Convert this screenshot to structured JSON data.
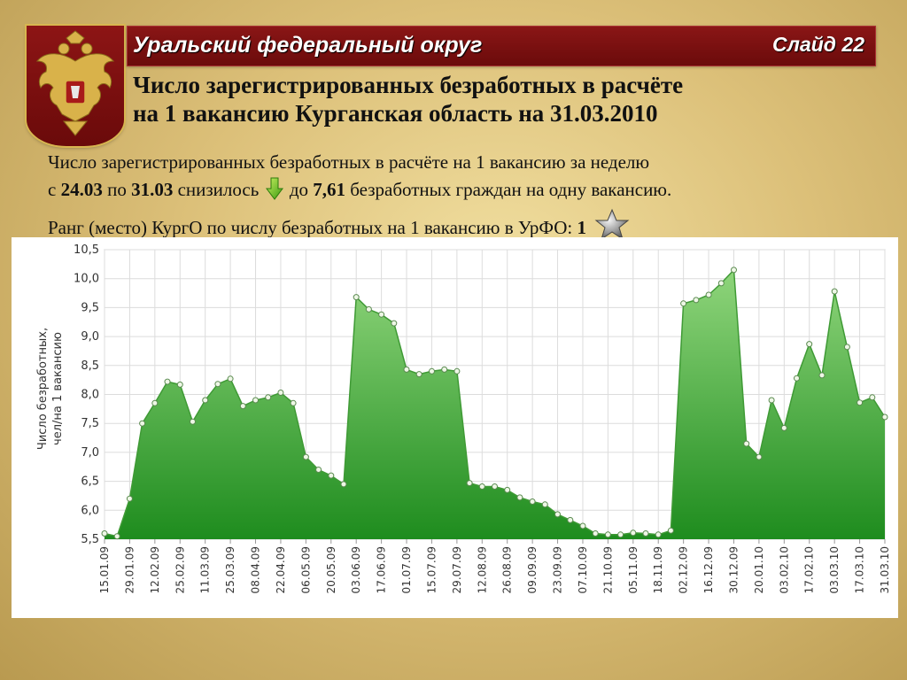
{
  "header": {
    "region": "Уральский федеральный округ",
    "slide": "Слайд 22"
  },
  "title": {
    "line1": "Число зарегистрированных безработных в расчёте",
    "line2": "на 1 вакансию Курганская область на 31.03.2010"
  },
  "summary": {
    "line1": "Число зарегистрированных безработных в расчёте на 1 вакансию за неделю",
    "from_prefix": "с",
    "date_from": "24.03",
    "by_word": "по",
    "date_to": "31.03",
    "change_word": "снизилось",
    "to_word": "до",
    "value": "7,61",
    "value_suffix": "безработных граждан на одну вакансию.",
    "rank_text": "Ранг (место) КургО по числу безработных на 1 вакансию в УрФО:",
    "rank_value": "1",
    "trend_icon": "arrow-down-icon",
    "rank_icon": "star-icon"
  },
  "colors": {
    "banner": "#7a0f0f",
    "area_fill_top": "#8fd57b",
    "area_fill_bottom": "#1e8c1e",
    "line": "#3f9a35"
  },
  "chart_data": {
    "type": "area",
    "ylabel_lines": [
      "Число безработных,",
      "чел/на 1 вакансию"
    ],
    "ylim": [
      5.5,
      10.5
    ],
    "yticks": [
      "5,5",
      "6,0",
      "6,5",
      "7,0",
      "7,5",
      "8,0",
      "8,5",
      "9,0",
      "9,5",
      "10,0",
      "10,5"
    ],
    "grid": true,
    "xlabels": [
      "15.01.09",
      "29.01.09",
      "12.02.09",
      "25.02.09",
      "11.03.09",
      "25.03.09",
      "08.04.09",
      "22.04.09",
      "06.05.09",
      "20.05.09",
      "03.06.09",
      "17.06.09",
      "01.07.09",
      "15.07.09",
      "29.07.09",
      "12.08.09",
      "26.08.09",
      "09.09.09",
      "23.09.09",
      "07.10.09",
      "21.10.09",
      "05.11.09",
      "18.11.09",
      "02.12.09",
      "16.12.09",
      "30.12.09",
      "20.01.10",
      "03.02.10",
      "17.02.10",
      "03.03.10",
      "17.03.10",
      "31.03.10"
    ],
    "series": [
      {
        "values": [
          5.6,
          5.55,
          6.2,
          7.5,
          7.85,
          8.22,
          8.17,
          7.53,
          7.9,
          8.18,
          8.27,
          7.8,
          7.9,
          7.95,
          8.03,
          7.85,
          6.92,
          6.7,
          6.6,
          6.45,
          9.68,
          9.47,
          9.38,
          9.23,
          8.43,
          8.35,
          8.4,
          8.43,
          8.4,
          6.47,
          6.41,
          6.41,
          6.35,
          6.22,
          6.15,
          6.1,
          5.93,
          5.83,
          5.73,
          5.6,
          5.58,
          5.58,
          5.61,
          5.6,
          5.58,
          5.65,
          9.57,
          9.63,
          9.72,
          9.92,
          10.15,
          7.15,
          6.92,
          7.9,
          7.42,
          8.28,
          8.87,
          8.33,
          9.78,
          8.82,
          7.86,
          7.95,
          7.61
        ]
      }
    ]
  }
}
